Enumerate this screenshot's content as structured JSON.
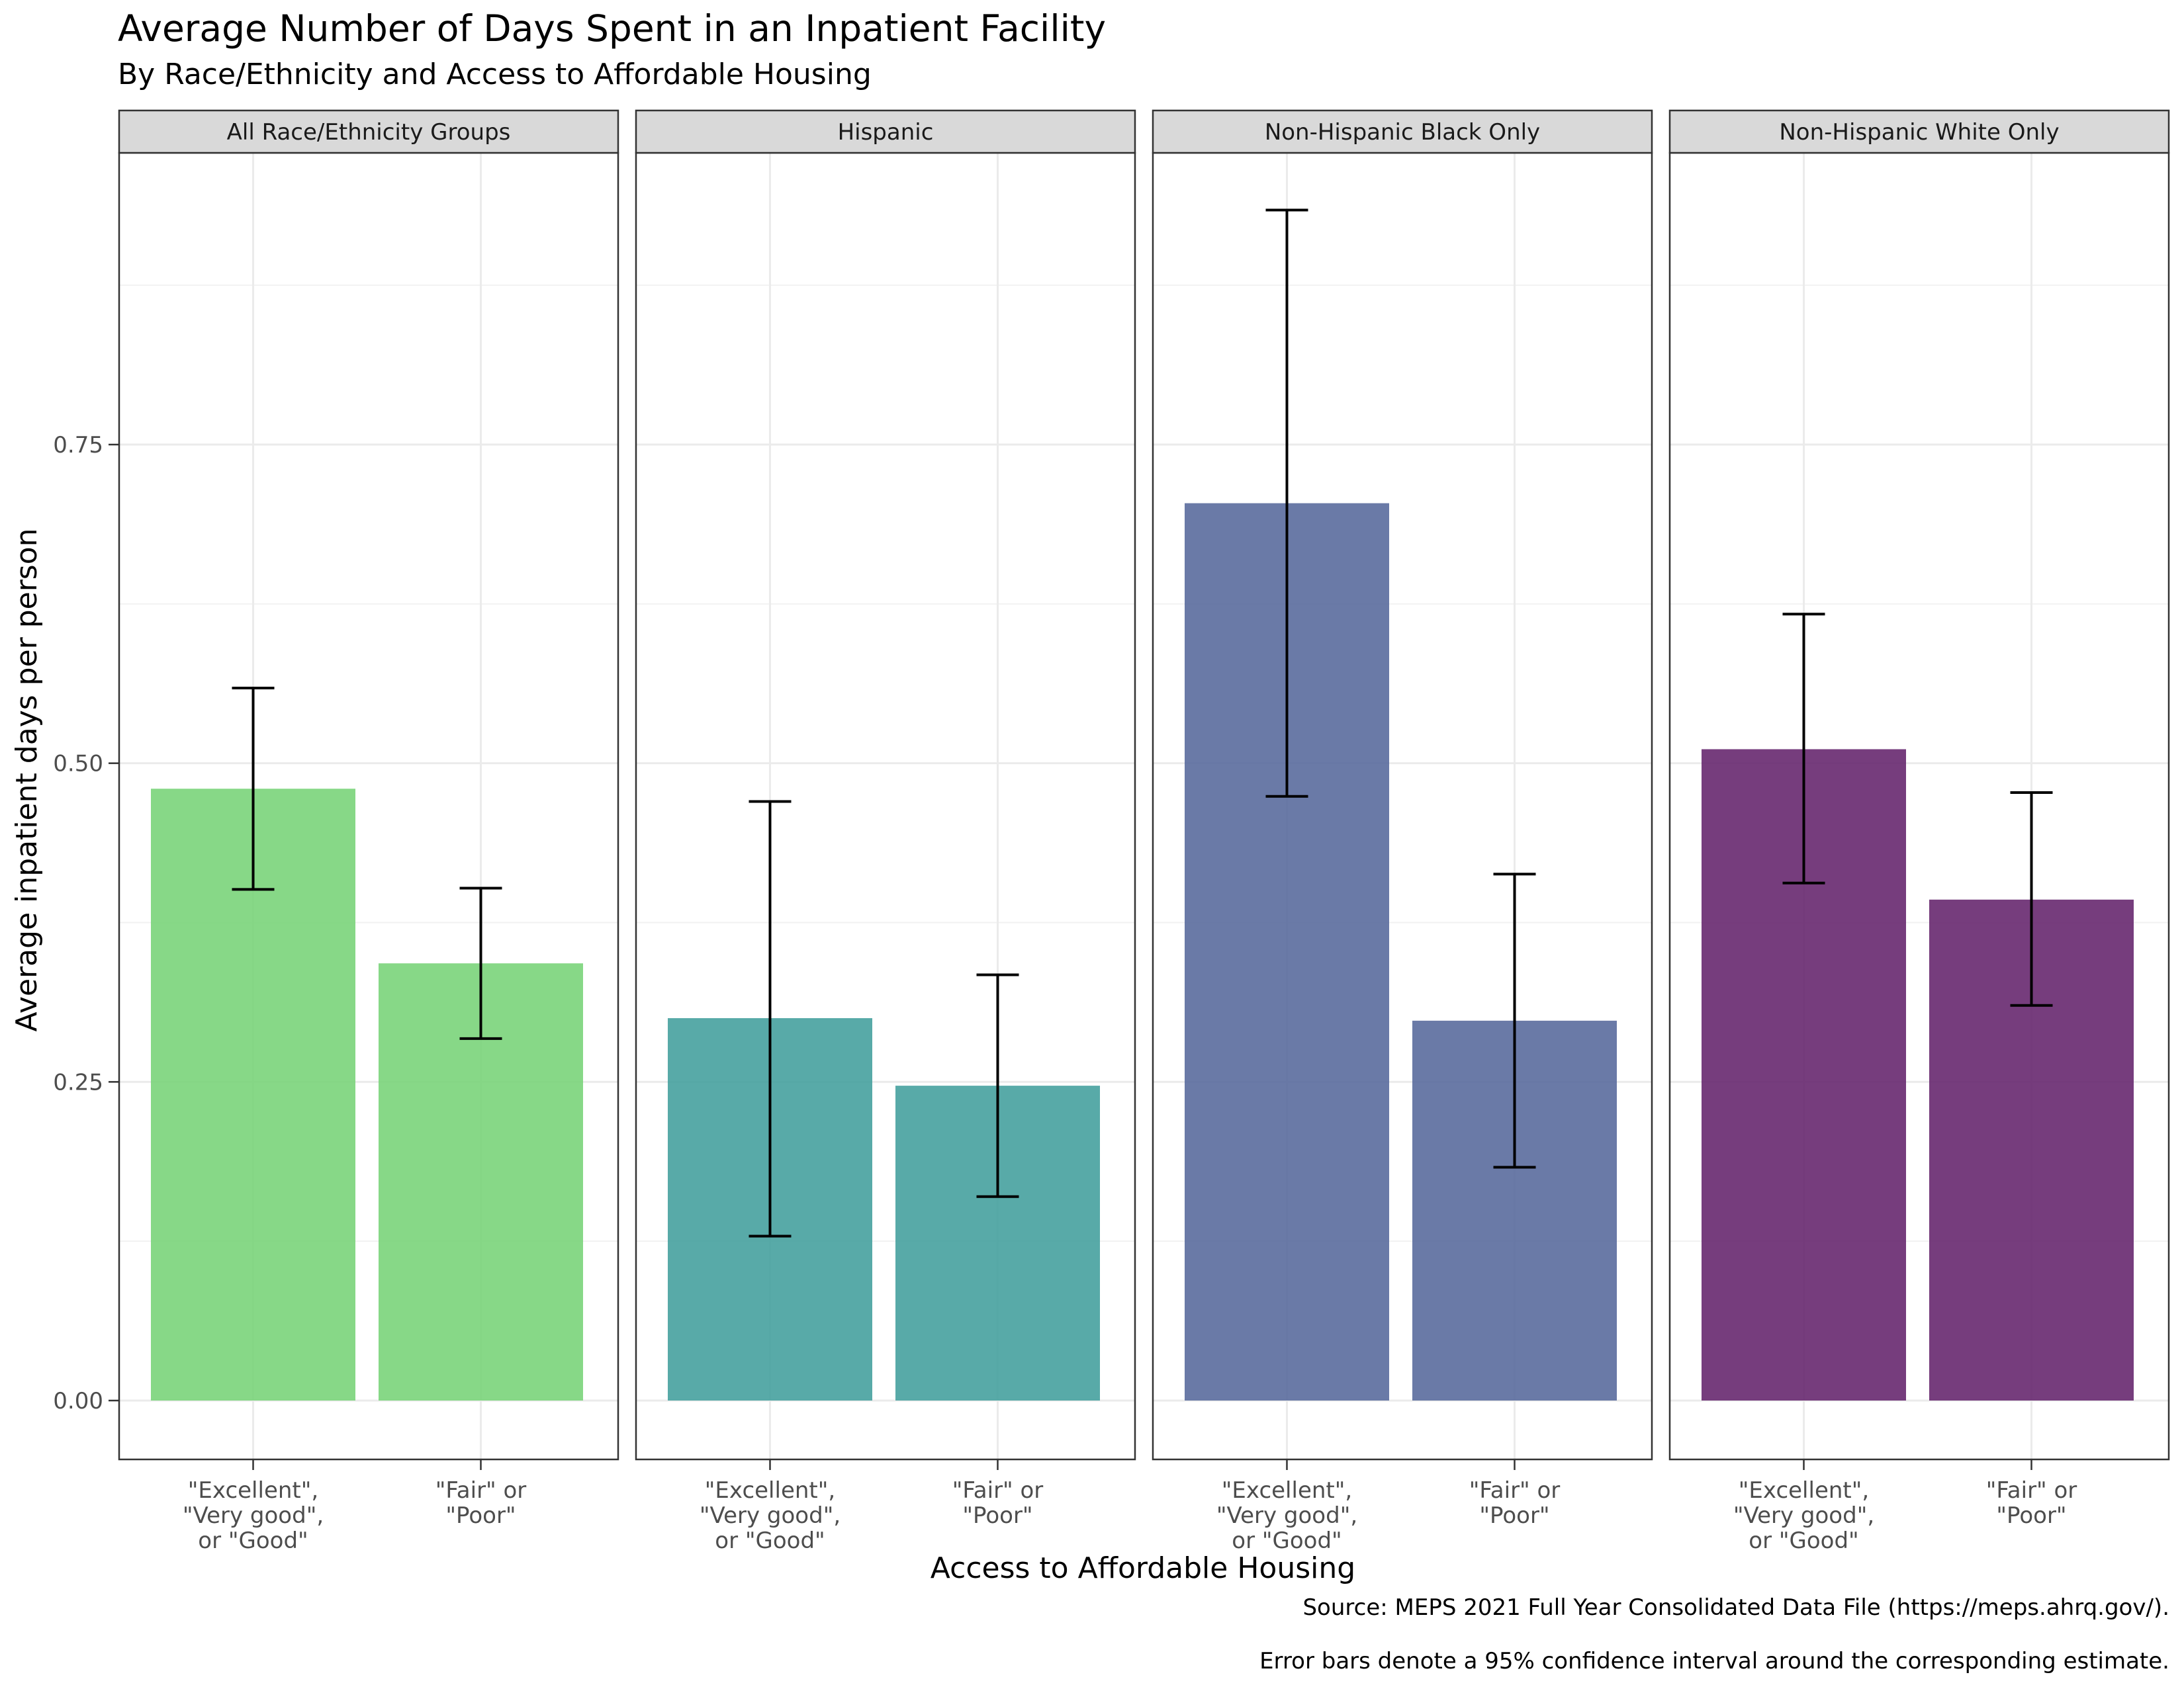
{
  "title": "Average Number of Days Spent in an Inpatient Facility",
  "subtitle": "By Race/Ethnicity and Access to Affordable Housing",
  "caption_lines": [
    "Source: MEPS 2021 Full Year Consolidated Data File (https://meps.ahrq.gov/).",
    "Error bars denote a 95% confidence interval around the corresponding estimate."
  ],
  "chart_data": {
    "type": "bar",
    "title": "Average Number of Days Spent in an Inpatient Facility",
    "subtitle": "By Race/Ethnicity and Access to Affordable Housing",
    "xlabel": "Access to Affordable Housing",
    "ylabel": "Average inpatient days per person",
    "ylim": [
      -0.05,
      1.0
    ],
    "yticks": [
      0.0,
      0.25,
      0.5,
      0.75
    ],
    "ytick_labels": [
      "0.00",
      "0.25",
      "0.50",
      "0.75"
    ],
    "grid": true,
    "legend": "none",
    "categories": [
      [
        "\"Excellent\",",
        "\"Very good\",",
        "or \"Good\""
      ],
      [
        "\"Fair\" or",
        "\"Poor\""
      ]
    ],
    "facets": [
      {
        "name": "All Race/Ethnicity Groups",
        "color": "#7AD47A",
        "values": [
          0.48,
          0.343
        ],
        "ci_low": [
          0.401,
          0.284
        ],
        "ci_high": [
          0.559,
          0.402
        ]
      },
      {
        "name": "Hispanic",
        "color": "#46A19F",
        "values": [
          0.3,
          0.247
        ],
        "ci_low": [
          0.129,
          0.16
        ],
        "ci_high": [
          0.47,
          0.334
        ]
      },
      {
        "name": "Non-Hispanic Black Only",
        "color": "#5A6C9D",
        "values": [
          0.704,
          0.298
        ],
        "ci_low": [
          0.474,
          0.183
        ],
        "ci_high": [
          0.934,
          0.413
        ]
      },
      {
        "name": "Non-Hispanic White Only",
        "color": "#67286F",
        "values": [
          0.511,
          0.393
        ],
        "ci_low": [
          0.406,
          0.31
        ],
        "ci_high": [
          0.617,
          0.477
        ]
      }
    ]
  }
}
